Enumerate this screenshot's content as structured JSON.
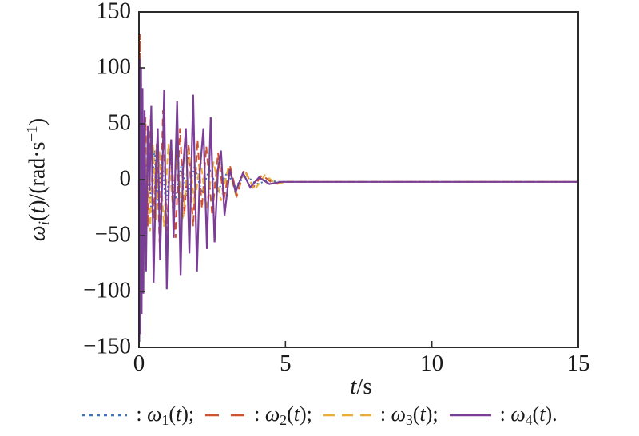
{
  "chart_data": {
    "type": "line",
    "title": "",
    "xlabel": "t/s",
    "ylabel": "ω_i(t)/(rad·s⁻¹)",
    "xlabel_parts": {
      "t": "t",
      "rest": "/s"
    },
    "ylabel_parts": {
      "omega": "ω",
      "sub": "i",
      "open": "(",
      "t": "t",
      "mid": ")/(rad·s",
      "sup": "−1",
      "close": ")"
    },
    "xlim": [
      0,
      15
    ],
    "ylim": [
      -150,
      150
    ],
    "grid": false,
    "legend_position": "bottom",
    "axis_color": "#2b2b2b",
    "xticks": [
      {
        "v": 0,
        "label": "0"
      },
      {
        "v": 5,
        "label": "5"
      },
      {
        "v": 10,
        "label": "10"
      },
      {
        "v": 15,
        "label": "15"
      }
    ],
    "yticks": [
      {
        "v": 150,
        "label": "150"
      },
      {
        "v": 100,
        "label": "100"
      },
      {
        "v": 50,
        "label": "50"
      },
      {
        "v": 0,
        "label": "0"
      },
      {
        "v": -50,
        "label": "−50"
      },
      {
        "v": -100,
        "label": "−100"
      },
      {
        "v": -150,
        "label": "−150"
      }
    ],
    "series": [
      {
        "id": "omega1",
        "name": "ω_1(t)",
        "color": "#3c74ba",
        "dash": "2 3.5",
        "legend_dash": "4 5",
        "width": 2,
        "points": [
          [
            0,
            0
          ],
          [
            0.01,
            105
          ],
          [
            0.02,
            -100
          ],
          [
            0.03,
            95
          ],
          [
            0.04,
            -92
          ],
          [
            0.05,
            82
          ],
          [
            0.06,
            -75
          ],
          [
            0.08,
            62
          ],
          [
            0.1,
            -55
          ],
          [
            0.12,
            46
          ],
          [
            0.15,
            -40
          ],
          [
            0.2,
            30
          ],
          [
            0.26,
            -26
          ],
          [
            0.33,
            21
          ],
          [
            0.42,
            -30
          ],
          [
            0.52,
            26
          ],
          [
            0.64,
            -20
          ],
          [
            0.78,
            18
          ],
          [
            0.92,
            -23
          ],
          [
            1.08,
            16
          ],
          [
            1.25,
            -18
          ],
          [
            1.45,
            14
          ],
          [
            1.65,
            -15
          ],
          [
            1.9,
            12
          ],
          [
            2.15,
            -12
          ],
          [
            2.4,
            10
          ],
          [
            2.7,
            -10
          ],
          [
            3.0,
            6
          ],
          [
            3.3,
            -6
          ],
          [
            3.65,
            4
          ],
          [
            4.0,
            -4
          ],
          [
            4.4,
            -1
          ],
          [
            4.8,
            -2
          ],
          [
            15,
            -2
          ]
        ]
      },
      {
        "id": "omega2",
        "name": "ω_2(t)",
        "color": "#d2512f",
        "dash": "9 6",
        "legend_dash": "17 15",
        "width": 2,
        "points": [
          [
            0,
            0
          ],
          [
            0.02,
            60
          ],
          [
            0.04,
            130
          ],
          [
            0.06,
            -60
          ],
          [
            0.1,
            42
          ],
          [
            0.15,
            -80
          ],
          [
            0.22,
            56
          ],
          [
            0.3,
            -42
          ],
          [
            0.4,
            58
          ],
          [
            0.5,
            -36
          ],
          [
            0.6,
            32
          ],
          [
            0.7,
            -56
          ],
          [
            0.82,
            62
          ],
          [
            0.95,
            -46
          ],
          [
            1.1,
            36
          ],
          [
            1.25,
            -52
          ],
          [
            1.4,
            46
          ],
          [
            1.55,
            -32
          ],
          [
            1.7,
            32
          ],
          [
            1.85,
            -42
          ],
          [
            2.0,
            36
          ],
          [
            2.15,
            -26
          ],
          [
            2.3,
            30
          ],
          [
            2.5,
            -32
          ],
          [
            2.7,
            24
          ],
          [
            2.9,
            -18
          ],
          [
            3.1,
            13
          ],
          [
            3.35,
            -14
          ],
          [
            3.6,
            9
          ],
          [
            3.9,
            -7
          ],
          [
            4.2,
            4
          ],
          [
            4.6,
            -4
          ],
          [
            5.0,
            -2
          ],
          [
            15,
            -2
          ]
        ]
      },
      {
        "id": "omega3",
        "name": "ω_3(t)",
        "color": "#e9ae33",
        "dash": "8 5",
        "legend_dash": "14 9",
        "width": 2,
        "points": [
          [
            0,
            0
          ],
          [
            0.02,
            -38
          ],
          [
            0.05,
            42
          ],
          [
            0.09,
            -32
          ],
          [
            0.14,
            40
          ],
          [
            0.2,
            -27
          ],
          [
            0.28,
            36
          ],
          [
            0.38,
            -46
          ],
          [
            0.48,
            32
          ],
          [
            0.58,
            -36
          ],
          [
            0.7,
            26
          ],
          [
            0.85,
            -42
          ],
          [
            1.0,
            32
          ],
          [
            1.15,
            -26
          ],
          [
            1.3,
            22
          ],
          [
            1.5,
            -36
          ],
          [
            1.7,
            26
          ],
          [
            1.9,
            -22
          ],
          [
            2.1,
            19
          ],
          [
            2.3,
            -26
          ],
          [
            2.55,
            16
          ],
          [
            2.8,
            -19
          ],
          [
            3.05,
            11
          ],
          [
            3.3,
            -13
          ],
          [
            3.6,
            8
          ],
          [
            3.95,
            -9
          ],
          [
            4.3,
            4
          ],
          [
            4.7,
            -4
          ],
          [
            5.1,
            -2
          ],
          [
            15,
            -2
          ]
        ]
      },
      {
        "id": "omega4",
        "name": "ω_4(t)",
        "color": "#7a3e97",
        "dash": "",
        "legend_dash": "",
        "width": 2.2,
        "points": [
          [
            0,
            0
          ],
          [
            0.01,
            -145
          ],
          [
            0.03,
            108
          ],
          [
            0.05,
            -138
          ],
          [
            0.07,
            100
          ],
          [
            0.09,
            -120
          ],
          [
            0.12,
            82
          ],
          [
            0.15,
            -102
          ],
          [
            0.19,
            62
          ],
          [
            0.24,
            -82
          ],
          [
            0.3,
            48
          ],
          [
            0.36,
            -10
          ],
          [
            0.42,
            66
          ],
          [
            0.5,
            -92
          ],
          [
            0.58,
            10
          ],
          [
            0.64,
            46
          ],
          [
            0.72,
            -72
          ],
          [
            0.8,
            6
          ],
          [
            0.86,
            80
          ],
          [
            0.95,
            -98
          ],
          [
            1.03,
            10
          ],
          [
            1.1,
            36
          ],
          [
            1.18,
            -52
          ],
          [
            1.3,
            70
          ],
          [
            1.42,
            -86
          ],
          [
            1.5,
            8
          ],
          [
            1.6,
            46
          ],
          [
            1.72,
            -66
          ],
          [
            1.85,
            76
          ],
          [
            1.98,
            -82
          ],
          [
            2.08,
            8
          ],
          [
            2.2,
            46
          ],
          [
            2.32,
            -62
          ],
          [
            2.45,
            56
          ],
          [
            2.58,
            -56
          ],
          [
            2.7,
            10
          ],
          [
            2.8,
            26
          ],
          [
            2.92,
            -32
          ],
          [
            3.1,
            9
          ],
          [
            3.3,
            -11
          ],
          [
            3.55,
            6
          ],
          [
            3.8,
            -7
          ],
          [
            4.1,
            2
          ],
          [
            4.45,
            -4
          ],
          [
            4.85,
            -2
          ],
          [
            15,
            -2
          ]
        ]
      }
    ]
  },
  "legend": {
    "items": [
      {
        "colon": ": ",
        "omega": "ω",
        "sub": "1",
        "open": "(",
        "t": "t",
        "close": ");"
      },
      {
        "colon": ": ",
        "omega": "ω",
        "sub": "2",
        "open": "(",
        "t": "t",
        "close": ");"
      },
      {
        "colon": ": ",
        "omega": "ω",
        "sub": "3",
        "open": "(",
        "t": "t",
        "close": ");"
      },
      {
        "colon": ": ",
        "omega": "ω",
        "sub": "4",
        "open": "(",
        "t": "t",
        "close": ")."
      }
    ]
  }
}
